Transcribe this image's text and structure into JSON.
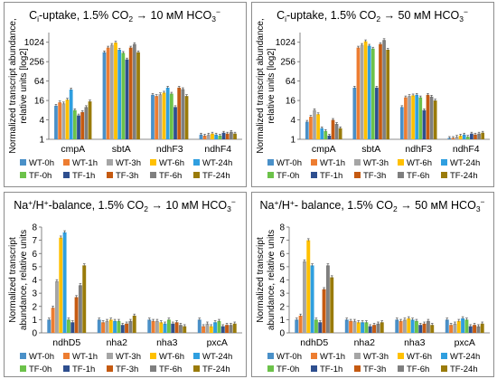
{
  "figure": {
    "colors": [
      "#4a90c8",
      "#ed7d31",
      "#a5a5a5",
      "#ffc000",
      "#2f9fe0",
      "#6cc24a",
      "#2e4f8f",
      "#c55a11",
      "#7f7f7f",
      "#9a7b0a"
    ]
  },
  "chart_data": [
    {
      "type": "bar",
      "title": "Ci-uptake, 1.5% CO2 → 10 мМ HCO3−",
      "title_parts": {
        "base": "C",
        "sub1": "i",
        "mid": "-uptake, 1.5% CO",
        "sub2": "2",
        "arrow": " → 10 мМ HCO",
        "sub3": "3",
        "sup": "−"
      },
      "ylabel_lines": [
        "Normalized transcript abundance,",
        "relative units [log2]"
      ],
      "yscale": "log2",
      "ylim": [
        1,
        2048
      ],
      "yticks": [
        "1",
        "4",
        "16",
        "64",
        "256",
        "1024"
      ],
      "categories": [
        "cmpA",
        "sbtA",
        "ndhF3",
        "ndhF4"
      ],
      "series": [
        {
          "name": "WT-0h",
          "values": [
            11,
            500,
            24,
            1.4
          ]
        },
        {
          "name": "WT-1h",
          "values": [
            14,
            700,
            22,
            1.3
          ]
        },
        {
          "name": "WT-3h",
          "values": [
            13,
            850,
            25,
            1.4
          ]
        },
        {
          "name": "WT-6h",
          "values": [
            17,
            1000,
            28,
            1.5
          ]
        },
        {
          "name": "WT-24h",
          "values": [
            35,
            600,
            40,
            1.4
          ]
        },
        {
          "name": "TF-0h",
          "values": [
            8,
            480,
            26,
            1.3
          ]
        },
        {
          "name": "TF-1h",
          "values": [
            5.5,
            300,
            10,
            1.6
          ]
        },
        {
          "name": "TF-3h",
          "values": [
            7,
            700,
            40,
            1.5
          ]
        },
        {
          "name": "TF-6h",
          "values": [
            10,
            900,
            36,
            1.7
          ]
        },
        {
          "name": "TF-24h",
          "values": [
            15,
            500,
            22,
            1.5
          ]
        }
      ]
    },
    {
      "type": "bar",
      "title": "Ci-uptake, 1.5% CO2 → 50 мМ HCO3−",
      "title_parts": {
        "base": "C",
        "sub1": "i",
        "mid": "-uptake, 1.5% CO",
        "sub2": "2",
        "arrow": " → 50 мМ HCO",
        "sub3": "3",
        "sup": "−"
      },
      "ylabel_lines": [
        "Normalized transcript abundance,",
        "relative units [log2]"
      ],
      "yscale": "log2",
      "ylim": [
        1,
        2048
      ],
      "yticks": [
        "1",
        "4",
        "16",
        "64",
        "256",
        "1024"
      ],
      "categories": [
        "cmpA",
        "sbtA",
        "ndhF3",
        "ndhF4"
      ],
      "series": [
        {
          "name": "WT-0h",
          "values": [
            3.5,
            40,
            10,
            1.1
          ]
        },
        {
          "name": "WT-1h",
          "values": [
            5,
            700,
            20,
            1.1
          ]
        },
        {
          "name": "WT-3h",
          "values": [
            8,
            850,
            22,
            1.2
          ]
        },
        {
          "name": "WT-6h",
          "values": [
            6,
            1100,
            23,
            1.3
          ]
        },
        {
          "name": "WT-24h",
          "values": [
            2.2,
            800,
            24,
            1.4
          ]
        },
        {
          "name": "TF-0h",
          "values": [
            1.8,
            650,
            20,
            1.2
          ]
        },
        {
          "name": "TF-1h",
          "values": [
            1.3,
            40,
            8,
            1.5
          ]
        },
        {
          "name": "TF-3h",
          "values": [
            4,
            900,
            24,
            1.4
          ]
        },
        {
          "name": "TF-6h",
          "values": [
            3,
            1200,
            21,
            1.5
          ]
        },
        {
          "name": "TF-24h",
          "values": [
            2.2,
            600,
            16,
            1.6
          ]
        }
      ]
    },
    {
      "type": "bar",
      "title": "Na+/H+-balance, 1.5% CO2 → 10 мМ HCO3−",
      "title_parts": {
        "base": "Na",
        "sup1": "+",
        "mid1": "/H",
        "sup2": "+",
        "mid2": "-balance, 1.5% CO",
        "sub2": "2",
        "arrow": " → 10 мМ HCO",
        "sub3": "3",
        "sup": "−"
      },
      "ylabel_lines": [
        "Normalized transcript",
        "abundance, relative units"
      ],
      "yscale": "linear",
      "ylim": [
        0,
        8
      ],
      "yticks": [
        "0",
        "1",
        "2",
        "3",
        "4",
        "5",
        "6",
        "7",
        "8"
      ],
      "categories": [
        "ndhD5",
        "nha2",
        "nha3",
        "pxcA"
      ],
      "series": [
        {
          "name": "WT-0h",
          "values": [
            1.0,
            1.0,
            1.0,
            1.0
          ]
        },
        {
          "name": "WT-1h",
          "values": [
            1.9,
            0.8,
            0.9,
            0.5
          ]
        },
        {
          "name": "WT-3h",
          "values": [
            3.9,
            0.9,
            0.9,
            0.7
          ]
        },
        {
          "name": "WT-6h",
          "values": [
            7.2,
            1.0,
            0.8,
            0.5
          ]
        },
        {
          "name": "WT-24h",
          "values": [
            7.6,
            0.9,
            0.7,
            0.8
          ]
        },
        {
          "name": "TF-0h",
          "values": [
            1.0,
            0.9,
            1.0,
            0.9
          ]
        },
        {
          "name": "TF-1h",
          "values": [
            0.8,
            0.6,
            0.7,
            0.5
          ]
        },
        {
          "name": "TF-3h",
          "values": [
            2.7,
            0.7,
            0.8,
            0.6
          ]
        },
        {
          "name": "TF-6h",
          "values": [
            3.6,
            0.9,
            0.6,
            0.6
          ]
        },
        {
          "name": "TF-24h",
          "values": [
            5.1,
            1.3,
            0.5,
            0.7
          ]
        }
      ]
    },
    {
      "type": "bar",
      "title": "Na+/H+- balance, 1.5% CO2 → 50 мМ HCO3−",
      "title_parts": {
        "base": "Na",
        "sup1": "+",
        "mid1": "/H",
        "sup2": "+",
        "mid2": "- balance, 1.5% CO",
        "sub2": "2",
        "arrow": " → 50 мМ HCO",
        "sub3": "3",
        "sup": "−"
      },
      "ylabel_lines": [
        "Normalized transcript",
        "abundance, relative units"
      ],
      "yscale": "linear",
      "ylim": [
        0,
        8
      ],
      "yticks": [
        "0",
        "1",
        "2",
        "3",
        "4",
        "5",
        "6",
        "7",
        "8"
      ],
      "categories": [
        "ndhD5",
        "nha2",
        "nha3",
        "pxcA"
      ],
      "series": [
        {
          "name": "WT-0h",
          "values": [
            1.0,
            1.0,
            1.0,
            1.0
          ]
        },
        {
          "name": "WT-1h",
          "values": [
            1.3,
            0.9,
            0.9,
            0.6
          ]
        },
        {
          "name": "WT-3h",
          "values": [
            5.4,
            0.9,
            1.0,
            0.7
          ]
        },
        {
          "name": "WT-6h",
          "values": [
            7.0,
            0.8,
            1.1,
            0.9
          ]
        },
        {
          "name": "WT-24h",
          "values": [
            5.1,
            0.8,
            1.0,
            1.1
          ]
        },
        {
          "name": "TF-0h",
          "values": [
            1.0,
            0.8,
            0.9,
            1.0
          ]
        },
        {
          "name": "TF-1h",
          "values": [
            0.8,
            0.5,
            0.6,
            0.5
          ]
        },
        {
          "name": "TF-3h",
          "values": [
            3.3,
            0.6,
            0.7,
            0.6
          ]
        },
        {
          "name": "TF-6h",
          "values": [
            5.1,
            0.7,
            0.9,
            0.5
          ]
        },
        {
          "name": "TF-24h",
          "values": [
            4.2,
            0.8,
            0.6,
            0.7
          ]
        }
      ]
    }
  ]
}
